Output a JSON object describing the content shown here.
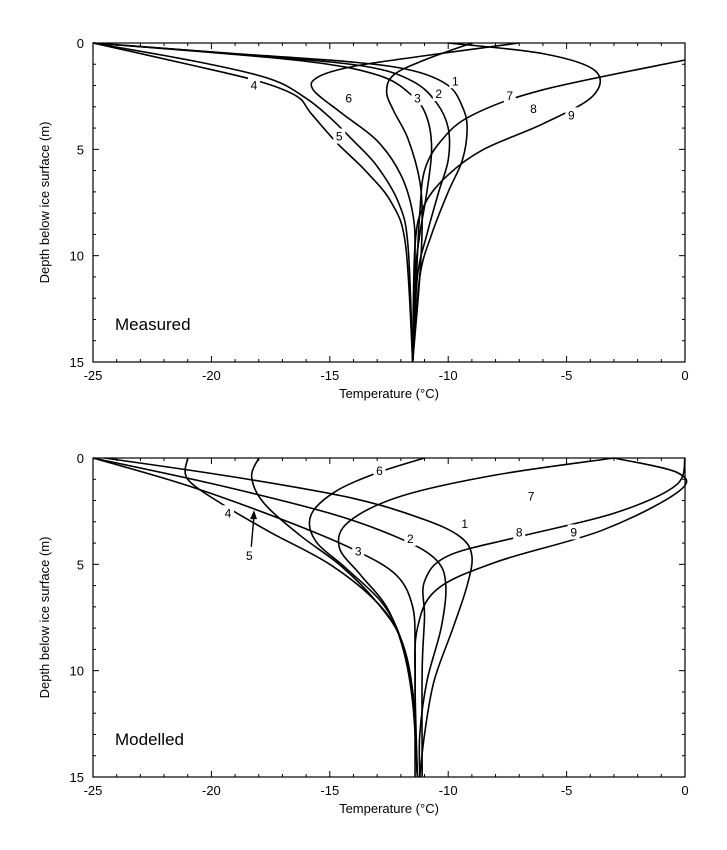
{
  "chart_data": [
    {
      "type": "line",
      "panel_label": "Measured",
      "xlabel": "Temperature (°C)",
      "ylabel": "Depth below ice surface (m)",
      "xlim": [
        -25,
        0
      ],
      "ylim": [
        0,
        15
      ],
      "y_inverted": true,
      "xticks": [
        -25,
        -20,
        -15,
        -10,
        -5,
        0
      ],
      "yticks": [
        0,
        5,
        10,
        15
      ],
      "grid": false,
      "series": [
        {
          "name": "1",
          "label_at": [
            -9.7,
            1.8
          ],
          "points": [
            [
              -25,
              0
            ],
            [
              -19,
              0.5
            ],
            [
              -14,
              0.9
            ],
            [
              -11.5,
              1.3
            ],
            [
              -10,
              2.0
            ],
            [
              -9.4,
              3.0
            ],
            [
              -9.2,
              4.0
            ],
            [
              -9.4,
              5.5
            ],
            [
              -10,
              7.0
            ],
            [
              -10.7,
              9.0
            ],
            [
              -11.2,
              11.0
            ],
            [
              -11.5,
              15
            ]
          ]
        },
        {
          "name": "2",
          "label_at": [
            -10.4,
            2.4
          ],
          "points": [
            [
              -25,
              0
            ],
            [
              -18,
              0.6
            ],
            [
              -13.5,
              1.1
            ],
            [
              -11.5,
              1.8
            ],
            [
              -10.5,
              2.8
            ],
            [
              -10,
              4.0
            ],
            [
              -10,
              5.5
            ],
            [
              -10.4,
              7.0
            ],
            [
              -10.9,
              9.0
            ],
            [
              -11.3,
              11.0
            ],
            [
              -11.5,
              15
            ]
          ]
        },
        {
          "name": "3",
          "label_at": [
            -11.3,
            2.6
          ],
          "points": [
            [
              -25,
              0
            ],
            [
              -16.5,
              0.8
            ],
            [
              -13,
              1.5
            ],
            [
              -11.5,
              2.5
            ],
            [
              -10.9,
              3.5
            ],
            [
              -10.7,
              5.0
            ],
            [
              -10.9,
              7.0
            ],
            [
              -11.2,
              9.0
            ],
            [
              -11.4,
              11.0
            ],
            [
              -11.5,
              15
            ]
          ]
        },
        {
          "name": "4",
          "label_at": [
            -18.2,
            2.0
          ],
          "points": [
            [
              -25,
              0
            ],
            [
              -20.5,
              0.9
            ],
            [
              -17.5,
              1.7
            ],
            [
              -16,
              2.6
            ],
            [
              -15,
              3.5
            ],
            [
              -14,
              4.6
            ],
            [
              -13,
              5.8
            ],
            [
              -12.1,
              7.5
            ],
            [
              -11.7,
              9.5
            ],
            [
              -11.5,
              15
            ]
          ]
        },
        {
          "name": "5",
          "label_at": [
            -14.6,
            4.4
          ],
          "points": [
            [
              -25,
              0
            ],
            [
              -21,
              1.0
            ],
            [
              -18,
              1.8
            ],
            [
              -16.4,
              2.5
            ],
            [
              -15.8,
              3.3
            ],
            [
              -14.7,
              4.7
            ],
            [
              -13.5,
              6.0
            ],
            [
              -12.4,
              7.5
            ],
            [
              -11.8,
              9.5
            ],
            [
              -11.5,
              15
            ]
          ]
        },
        {
          "name": "6",
          "label_at": [
            -14.2,
            2.6
          ],
          "points": [
            [
              -7,
              0
            ],
            [
              -11,
              0.6
            ],
            [
              -14,
              1.1
            ],
            [
              -15.5,
              1.6
            ],
            [
              -15.7,
              2.2
            ],
            [
              -14.5,
              3.3
            ],
            [
              -13,
              4.6
            ],
            [
              -12,
              6.2
            ],
            [
              -11.5,
              8.0
            ],
            [
              -11.4,
              10.0
            ],
            [
              -11.5,
              15
            ]
          ]
        },
        {
          "name": "7",
          "label_at": [
            -7.4,
            2.5
          ],
          "points": [
            [
              -9,
              0
            ],
            [
              -11,
              0.8
            ],
            [
              -12.3,
              1.5
            ],
            [
              -12.6,
              2.3
            ],
            [
              -12.3,
              3.2
            ],
            [
              -11.7,
              4.5
            ],
            [
              -11.2,
              6.5
            ],
            [
              -11.1,
              8.5
            ],
            [
              -11.2,
              11.0
            ],
            [
              -11.5,
              15
            ]
          ]
        },
        {
          "name": "8",
          "label_at": [
            -6.4,
            3.1
          ],
          "points": [
            [
              0,
              0.8
            ],
            [
              -6,
              2.2
            ],
            [
              -9,
              3.4
            ],
            [
              -10.3,
              4.6
            ],
            [
              -11,
              6.0
            ],
            [
              -11.2,
              8.0
            ],
            [
              -11.3,
              10.0
            ],
            [
              -11.5,
              15
            ]
          ]
        },
        {
          "name": "9",
          "label_at": [
            -4.8,
            3.4
          ],
          "points": [
            [
              -10,
              0
            ],
            [
              -6,
              0.5
            ],
            [
              -3.8,
              1.3
            ],
            [
              -3.9,
              2.5
            ],
            [
              -6,
              3.8
            ],
            [
              -8.5,
              5.0
            ],
            [
              -10,
              6.2
            ],
            [
              -11,
              7.6
            ],
            [
              -11.4,
              9.5
            ],
            [
              -11.5,
              15
            ]
          ]
        }
      ]
    },
    {
      "type": "line",
      "panel_label": "Modelled",
      "xlabel": "Temperature (°C)",
      "ylabel": "Depth below ice surface (m)",
      "xlim": [
        -25,
        0
      ],
      "ylim": [
        0,
        15
      ],
      "y_inverted": true,
      "xticks": [
        -25,
        -20,
        -15,
        -10,
        -5,
        0
      ],
      "yticks": [
        0,
        5,
        10,
        15
      ],
      "grid": false,
      "series": [
        {
          "name": "1",
          "label_at": [
            -9.3,
            3.1
          ],
          "points": [
            [
              -24.5,
              0
            ],
            [
              -19,
              0.9
            ],
            [
              -14,
              1.9
            ],
            [
              -11,
              2.9
            ],
            [
              -9.5,
              3.7
            ],
            [
              -9,
              4.6
            ],
            [
              -9.2,
              6.0
            ],
            [
              -9.8,
              8.0
            ],
            [
              -10.6,
              10.5
            ],
            [
              -11,
              13.0
            ],
            [
              -11.2,
              15
            ]
          ]
        },
        {
          "name": "2",
          "label_at": [
            -11.6,
            3.8
          ],
          "points": [
            [
              -25,
              0
            ],
            [
              -20,
              1.2
            ],
            [
              -15,
              2.6
            ],
            [
              -12,
              3.8
            ],
            [
              -10.5,
              4.8
            ],
            [
              -10.1,
              6.0
            ],
            [
              -10.3,
              8.0
            ],
            [
              -10.9,
              10.5
            ],
            [
              -11.2,
              13.0
            ],
            [
              -11.2,
              15
            ]
          ]
        },
        {
          "name": "3",
          "label_at": [
            -13.8,
            4.4
          ],
          "points": [
            [
              -25,
              0
            ],
            [
              -21,
              1.3
            ],
            [
              -17,
              2.9
            ],
            [
              -14,
              4.3
            ],
            [
              -12.2,
              5.5
            ],
            [
              -11.5,
              7.0
            ],
            [
              -11.4,
              9.0
            ],
            [
              -11.4,
              11.5
            ],
            [
              -11.4,
              15
            ]
          ]
        },
        {
          "name": "4",
          "label_at": [
            -19.3,
            2.6
          ],
          "points": [
            [
              -21,
              0
            ],
            [
              -21,
              1.0
            ],
            [
              -19.5,
              2.2
            ],
            [
              -17.5,
              3.5
            ],
            [
              -15,
              5.0
            ],
            [
              -13,
              6.8
            ],
            [
              -12,
              8.5
            ],
            [
              -11.5,
              11.0
            ],
            [
              -11.3,
              15
            ]
          ]
        },
        {
          "name": "5",
          "label_at": [
            -18.4,
            4.6
          ],
          "arrow_to": [
            -18.2,
            2.5
          ],
          "points": [
            [
              -18,
              0
            ],
            [
              -18.3,
              0.9
            ],
            [
              -17.8,
              2.1
            ],
            [
              -16.3,
              3.6
            ],
            [
              -14.5,
              5.1
            ],
            [
              -13,
              6.8
            ],
            [
              -12,
              8.5
            ],
            [
              -11.5,
              11.0
            ],
            [
              -11.3,
              15
            ]
          ]
        },
        {
          "name": "6",
          "label_at": [
            -12.9,
            0.6
          ],
          "points": [
            [
              -11,
              0
            ],
            [
              -13,
              0.7
            ],
            [
              -14.8,
              1.6
            ],
            [
              -15.8,
              2.7
            ],
            [
              -15.6,
              3.9
            ],
            [
              -14.3,
              5.2
            ],
            [
              -12.8,
              6.8
            ],
            [
              -12,
              8.5
            ],
            [
              -11.5,
              11.0
            ],
            [
              -11.3,
              15
            ]
          ]
        },
        {
          "name": "7",
          "label_at": [
            -6.5,
            1.8
          ],
          "points": [
            [
              -3,
              0
            ],
            [
              -8,
              0.8
            ],
            [
              -12,
              1.8
            ],
            [
              -14.2,
              3.0
            ],
            [
              -14.6,
              4.2
            ],
            [
              -13.7,
              5.5
            ],
            [
              -12.6,
              7.0
            ],
            [
              -11.9,
              9.0
            ],
            [
              -11.5,
              11.5
            ],
            [
              -11.3,
              15
            ]
          ]
        },
        {
          "name": "8",
          "label_at": [
            -7.0,
            3.5
          ],
          "points": [
            [
              0,
              0
            ],
            [
              -0.4,
              1.3
            ],
            [
              -3,
              2.6
            ],
            [
              -7,
              3.7
            ],
            [
              -10,
              4.6
            ],
            [
              -11,
              5.8
            ],
            [
              -11,
              7.5
            ],
            [
              -11.1,
              10.0
            ],
            [
              -11.1,
              15
            ]
          ]
        },
        {
          "name": "9",
          "label_at": [
            -4.7,
            3.5
          ],
          "points": [
            [
              -3,
              0
            ],
            [
              -0.3,
              0.7
            ],
            [
              -0.3,
              1.6
            ],
            [
              -3.5,
              3.4
            ],
            [
              -8,
              4.9
            ],
            [
              -10.5,
              6.2
            ],
            [
              -11.3,
              8.0
            ],
            [
              -11.4,
              10.5
            ],
            [
              -11.3,
              15
            ]
          ]
        }
      ]
    }
  ]
}
